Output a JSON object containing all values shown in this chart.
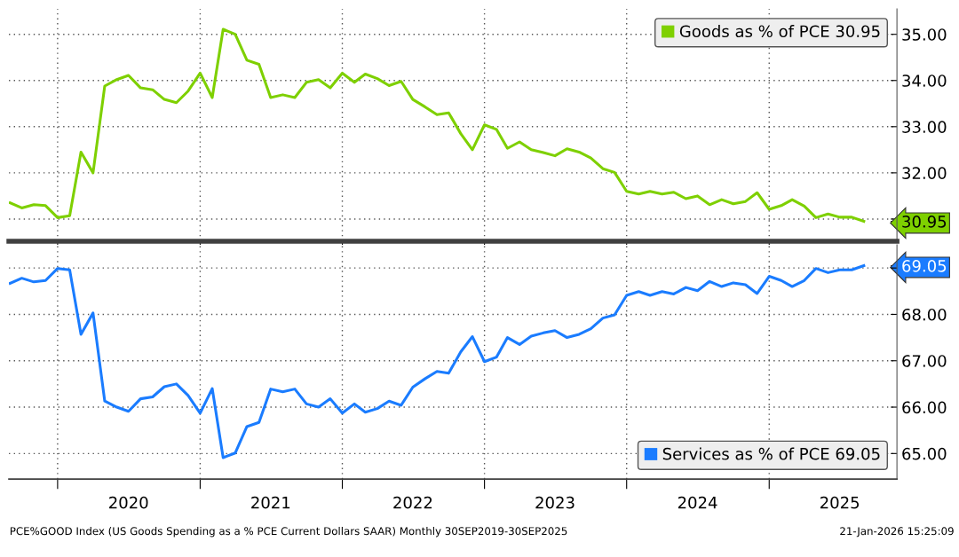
{
  "chart_data": [
    {
      "type": "line",
      "x": [
        "2019-09",
        "2019-10",
        "2019-11",
        "2019-12",
        "2020-01",
        "2020-02",
        "2020-03",
        "2020-04",
        "2020-05",
        "2020-06",
        "2020-07",
        "2020-08",
        "2020-09",
        "2020-10",
        "2020-11",
        "2020-12",
        "2021-01",
        "2021-02",
        "2021-03",
        "2021-04",
        "2021-05",
        "2021-06",
        "2021-07",
        "2021-08",
        "2021-09",
        "2021-10",
        "2021-11",
        "2021-12",
        "2022-01",
        "2022-02",
        "2022-03",
        "2022-04",
        "2022-05",
        "2022-06",
        "2022-07",
        "2022-08",
        "2022-09",
        "2022-10",
        "2022-11",
        "2022-12",
        "2023-01",
        "2023-02",
        "2023-03",
        "2023-04",
        "2023-05",
        "2023-06",
        "2023-07",
        "2023-08",
        "2023-09",
        "2023-10",
        "2023-11",
        "2023-12",
        "2024-01",
        "2024-02",
        "2024-03",
        "2024-04",
        "2024-05",
        "2024-06",
        "2024-07",
        "2024-08",
        "2024-09",
        "2024-10",
        "2024-11",
        "2024-12",
        "2025-01",
        "2025-02",
        "2025-03",
        "2025-04",
        "2025-05",
        "2025-06",
        "2025-07",
        "2025-08",
        "2025-09"
      ],
      "series": [
        {
          "name": "Goods as % of PCE 30.95",
          "color": "#7ed000",
          "values": [
            31.35,
            31.24,
            31.31,
            31.29,
            31.03,
            31.07,
            32.45,
            32.0,
            33.88,
            34.02,
            34.11,
            33.84,
            33.8,
            33.59,
            33.52,
            33.77,
            34.16,
            33.63,
            35.11,
            35.0,
            34.44,
            34.35,
            33.63,
            33.69,
            33.63,
            33.96,
            34.02,
            33.84,
            34.16,
            33.96,
            34.14,
            34.04,
            33.89,
            33.98,
            33.59,
            33.43,
            33.26,
            33.3,
            32.85,
            32.5,
            33.04,
            32.94,
            32.53,
            32.67,
            32.5,
            32.44,
            32.37,
            32.52,
            32.45,
            32.32,
            32.09,
            32.01,
            31.6,
            31.54,
            31.6,
            31.54,
            31.58,
            31.44,
            31.5,
            31.31,
            31.42,
            31.33,
            31.38,
            31.57,
            31.21,
            31.29,
            31.42,
            31.28,
            31.03,
            31.11,
            31.04,
            31.04,
            30.95
          ]
        }
      ],
      "xlim": [
        "2019-08-29",
        "2025-11-25"
      ],
      "xticks": [
        {
          "value": "2020-01-01",
          "label": null
        },
        {
          "value": "2021-01-01",
          "label": null
        },
        {
          "value": "2022-01-01",
          "label": null
        },
        {
          "value": "2023-01-01",
          "label": null
        },
        {
          "value": "2024-01-01",
          "label": null
        },
        {
          "value": "2025-01-01",
          "label": null
        }
      ],
      "ylim": [
        30.52,
        35.55
      ],
      "yticks": [
        {
          "value": 35,
          "label": "35.00"
        },
        {
          "value": 34,
          "label": "34.00"
        },
        {
          "value": 33,
          "label": "33.00"
        },
        {
          "value": 32,
          "label": "32.00"
        },
        {
          "value": 31,
          "label": null
        },
        {
          "value": 30.95,
          "label": "30.95"
        }
      ],
      "tick_labels": "y",
      "grid": true,
      "legend": "top right",
      "marker": "none",
      "line_style": "solid"
    },
    {
      "type": "line",
      "x": [
        "2019-09",
        "2019-10",
        "2019-11",
        "2019-12",
        "2020-01",
        "2020-02",
        "2020-03",
        "2020-04",
        "2020-05",
        "2020-06",
        "2020-07",
        "2020-08",
        "2020-09",
        "2020-10",
        "2020-11",
        "2020-12",
        "2021-01",
        "2021-02",
        "2021-03",
        "2021-04",
        "2021-05",
        "2021-06",
        "2021-07",
        "2021-08",
        "2021-09",
        "2021-10",
        "2021-11",
        "2021-12",
        "2022-01",
        "2022-02",
        "2022-03",
        "2022-04",
        "2022-05",
        "2022-06",
        "2022-07",
        "2022-08",
        "2022-09",
        "2022-10",
        "2022-11",
        "2022-12",
        "2023-01",
        "2023-02",
        "2023-03",
        "2023-04",
        "2023-05",
        "2023-06",
        "2023-07",
        "2023-08",
        "2023-09",
        "2023-10",
        "2023-11",
        "2023-12",
        "2024-01",
        "2024-02",
        "2024-03",
        "2024-04",
        "2024-05",
        "2024-06",
        "2024-07",
        "2024-08",
        "2024-09",
        "2024-10",
        "2024-11",
        "2024-12",
        "2025-01",
        "2025-02",
        "2025-03",
        "2025-04",
        "2025-05",
        "2025-06",
        "2025-07",
        "2025-08",
        "2025-09"
      ],
      "series": [
        {
          "name": "Services as % of PCE 69.05",
          "color": "#1a7cff",
          "values": [
            68.67,
            68.78,
            68.7,
            68.73,
            68.99,
            68.96,
            67.57,
            68.03,
            66.13,
            66.0,
            65.91,
            66.18,
            66.22,
            66.44,
            66.5,
            66.25,
            65.87,
            66.4,
            64.91,
            65.01,
            65.58,
            65.67,
            66.39,
            66.33,
            66.39,
            66.07,
            66.0,
            66.18,
            65.87,
            66.07,
            65.89,
            65.97,
            66.13,
            66.04,
            66.43,
            66.61,
            66.77,
            66.73,
            67.19,
            67.52,
            66.98,
            67.08,
            67.5,
            67.35,
            67.53,
            67.6,
            67.65,
            67.5,
            67.57,
            67.69,
            67.92,
            67.99,
            68.41,
            68.49,
            68.41,
            68.49,
            68.44,
            68.58,
            68.51,
            68.71,
            68.6,
            68.68,
            68.64,
            68.45,
            68.82,
            68.73,
            68.6,
            68.73,
            68.99,
            68.9,
            68.96,
            68.96,
            69.05
          ]
        }
      ],
      "xlim": [
        "2019-08-29",
        "2025-11-25"
      ],
      "xticks": [
        {
          "value": "2020-01-01",
          "label": null
        },
        {
          "value": "2020-07-01",
          "label": "2020"
        },
        {
          "value": "2021-01-01",
          "label": null
        },
        {
          "value": "2021-07-01",
          "label": "2021"
        },
        {
          "value": "2022-01-01",
          "label": null
        },
        {
          "value": "2022-07-01",
          "label": "2022"
        },
        {
          "value": "2023-01-01",
          "label": null
        },
        {
          "value": "2023-07-01",
          "label": "2023"
        },
        {
          "value": "2024-01-01",
          "label": null
        },
        {
          "value": "2024-07-01",
          "label": "2024"
        },
        {
          "value": "2025-01-01",
          "label": null
        },
        {
          "value": "2025-07-01",
          "label": "2025"
        }
      ],
      "ylim": [
        64.45,
        69.5
      ],
      "yticks": [
        {
          "value": 69.05,
          "label": "69.05"
        },
        {
          "value": 69,
          "label": null
        },
        {
          "value": 68,
          "label": "68.00"
        },
        {
          "value": 67,
          "label": "67.00"
        },
        {
          "value": 66,
          "label": "66.00"
        },
        {
          "value": 65,
          "label": "65.00"
        }
      ],
      "annotations": [
        "PCE%GOOD Index (US Goods Spending as a % PCE Current Dollars SAAR) Monthly 30SEP2019-30SEP2025",
        "21-Jan-2026 15:25:09"
      ],
      "grid": true,
      "legend": "bottom right",
      "marker": "none",
      "line_style": "solid"
    }
  ]
}
